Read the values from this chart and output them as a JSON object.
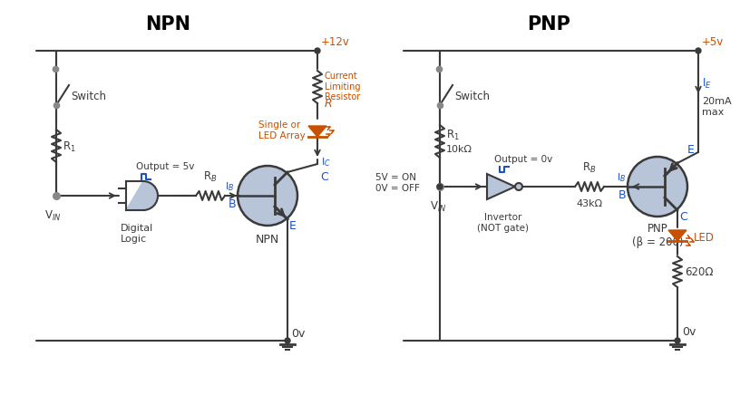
{
  "title_npn": "NPN",
  "title_pnp": "PNP",
  "bg_color": "#ffffff",
  "line_color": "#3a3a3a",
  "blue_color": "#1a50cc",
  "orange_color": "#c85000",
  "gray_fill": "#b8c4d8",
  "title_fontsize": 15,
  "label_fontsize": 8.5,
  "npn_vcc_label": "+12v",
  "pnp_vcc_label": "+5v",
  "gnd_label": "0v",
  "r_label": "R",
  "rb_label": "R_B",
  "r1_label": "R_1",
  "ic_label": "I_C",
  "ib_label": "I_B",
  "ie_label": "I_E",
  "npn_label": "NPN",
  "pnp_label": "PNP (\\u03b2 = 200)",
  "c_label": "C",
  "b_label": "B",
  "e_label": "E",
  "switch_label": "Switch",
  "dig_logic_label": "Digital\nLogic",
  "output5v_label": "Output = 5v",
  "output0v_label": "Output = 0v",
  "clr_label": "Current\nLimiting\nResistor",
  "led_array_label": "Single or\nLED Array",
  "invertor_label": "Invertor\n(NOT gate)",
  "r1_pnp_label": "R_1\n10kΩ",
  "rb_pnp_label": "43kΩ",
  "ie_info": "20mA\nmax",
  "vin_label_npn": "V_IN",
  "vin_label_pnp": "V_IN",
  "vin_pnp_info": "5V = ON\n0V = OFF"
}
